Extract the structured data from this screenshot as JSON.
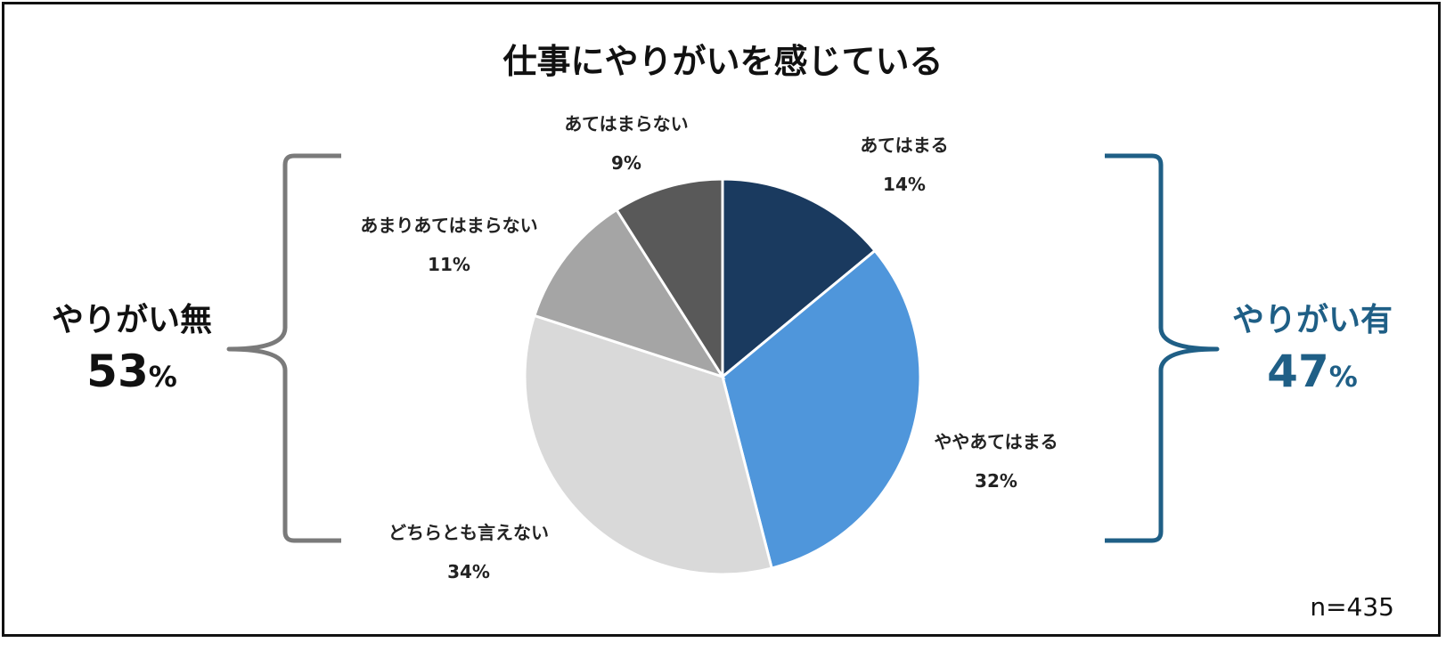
{
  "chart_data": {
    "type": "pie",
    "title": "仕事にやりがいを感じている",
    "slices": [
      {
        "label": "あてはまる",
        "value": 14,
        "value_text": "14%",
        "color": "#1a3a5f"
      },
      {
        "label": "ややあてはまる",
        "value": 32,
        "value_text": "32%",
        "color": "#4f96db"
      },
      {
        "label": "どちらとも言えない",
        "value": 34,
        "value_text": "34%",
        "color": "#d9d9d9"
      },
      {
        "label": "あまりあてはまらない",
        "value": 11,
        "value_text": "11%",
        "color": "#a5a5a5"
      },
      {
        "label": "あてはまらない",
        "value": 9,
        "value_text": "9%",
        "color": "#595959"
      }
    ],
    "start": "12 o'clock, clockwise",
    "groups": {
      "negative": {
        "title": "やりがい無",
        "value": "53",
        "unit": "%",
        "color": "#111111",
        "bracket_color": "#7a7a7a"
      },
      "positive": {
        "title": "やりがい有",
        "value": "47",
        "unit": "%",
        "color": "#1f5f86",
        "bracket_color": "#1f5f86"
      }
    },
    "note": "n=435"
  }
}
